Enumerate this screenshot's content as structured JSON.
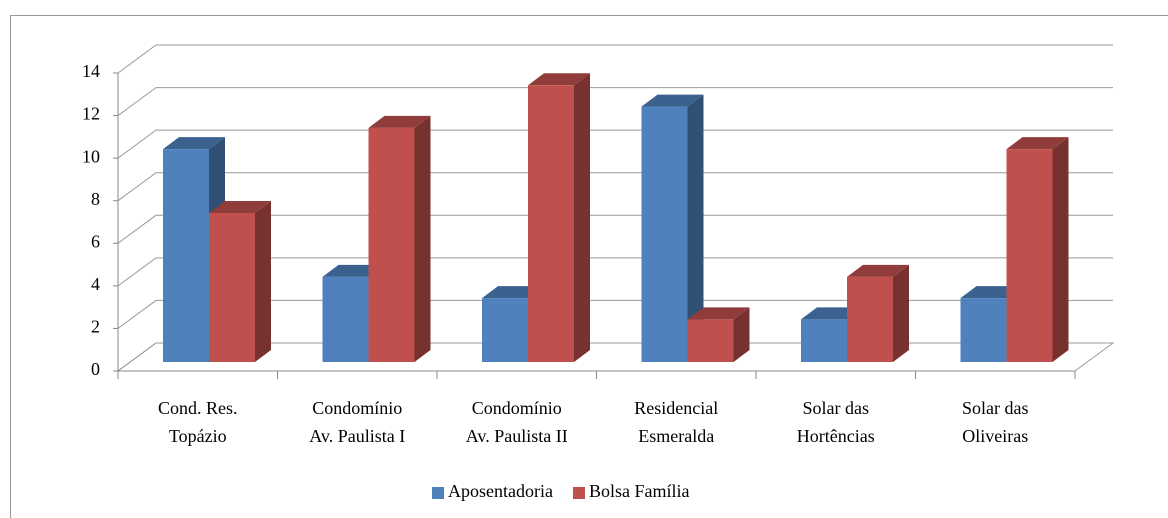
{
  "chart_data": {
    "type": "bar3d",
    "categories": [
      [
        "Cond. Res.",
        "Topázio"
      ],
      [
        "Condomínio",
        "Av. Paulista I"
      ],
      [
        "Condomínio",
        "Av. Paulista II"
      ],
      [
        "Residencial",
        "Esmeralda"
      ],
      [
        "Solar das",
        "Hortências"
      ],
      [
        "Solar das",
        "Oliveiras"
      ]
    ],
    "series": [
      {
        "name": "Aposentadoria",
        "color": "#4f81bd",
        "values": [
          10,
          4,
          3,
          12,
          2,
          3
        ]
      },
      {
        "name": "Bolsa Família",
        "color": "#c0504d",
        "values": [
          7,
          11,
          13,
          2,
          4,
          10
        ]
      }
    ],
    "ylim": [
      0,
      14
    ],
    "yticks": [
      0,
      2,
      4,
      6,
      8,
      10,
      12,
      14
    ],
    "grid": true,
    "legend": "bottom"
  }
}
